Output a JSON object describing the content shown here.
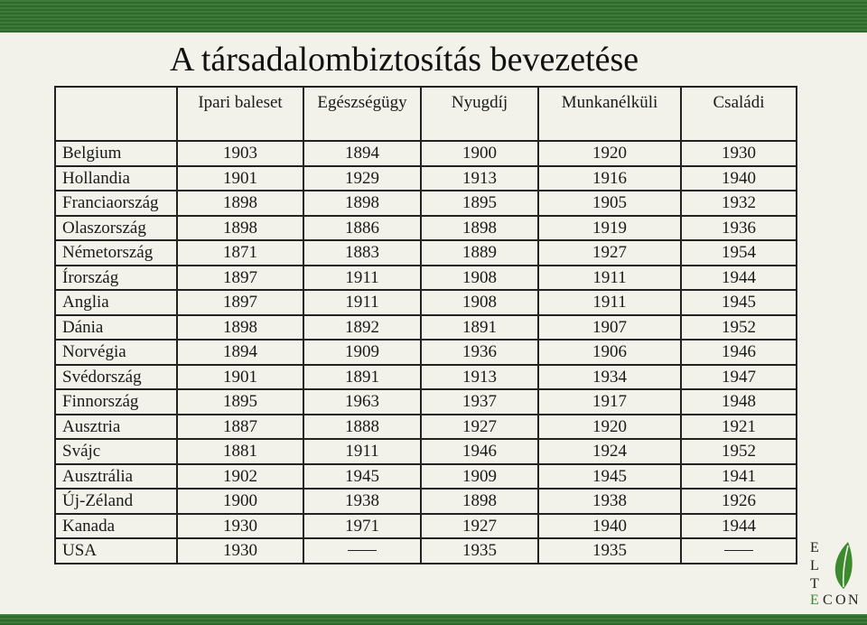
{
  "title": "A társadalombiztosítás bevezetése",
  "table": {
    "headers": [
      "",
      "Ipari baleset",
      "Egészségügy",
      "Nyugdíj",
      "Munkanélküli",
      "Családi"
    ],
    "rows": [
      {
        "country": "Belgium",
        "values": [
          "1903",
          "1894",
          "1900",
          "1920",
          "1930"
        ]
      },
      {
        "country": "Hollandia",
        "values": [
          "1901",
          "1929",
          "1913",
          "1916",
          "1940"
        ]
      },
      {
        "country": "Franciaország",
        "values": [
          "1898",
          "1898",
          "1895",
          "1905",
          "1932"
        ]
      },
      {
        "country": "Olaszország",
        "values": [
          "1898",
          "1886",
          "1898",
          "1919",
          "1936"
        ]
      },
      {
        "country": "Németország",
        "values": [
          "1871",
          "1883",
          "1889",
          "1927",
          "1954"
        ]
      },
      {
        "country": "Írország",
        "values": [
          "1897",
          "1911",
          "1908",
          "1911",
          "1944"
        ]
      },
      {
        "country": "Anglia",
        "values": [
          "1897",
          "1911",
          "1908",
          "1911",
          "1945"
        ]
      },
      {
        "country": "Dánia",
        "values": [
          "1898",
          "1892",
          "1891",
          "1907",
          "1952"
        ]
      },
      {
        "country": "Norvégia",
        "values": [
          "1894",
          "1909",
          "1936",
          "1906",
          "1946"
        ]
      },
      {
        "country": "Svédország",
        "values": [
          "1901",
          "1891",
          "1913",
          "1934",
          "1947"
        ]
      },
      {
        "country": "Finnország",
        "values": [
          "1895",
          "1963",
          "1937",
          "1917",
          "1948"
        ]
      },
      {
        "country": "Ausztria",
        "values": [
          "1887",
          "1888",
          "1927",
          "1920",
          "1921"
        ]
      },
      {
        "country": "Svájc",
        "values": [
          "1881",
          "1911",
          "1946",
          "1924",
          "1952"
        ]
      },
      {
        "country": "Ausztrália",
        "values": [
          "1902",
          "1945",
          "1909",
          "1945",
          "1941"
        ]
      },
      {
        "country": "Új-Zéland",
        "values": [
          "1900",
          "1938",
          "1898",
          "1938",
          "1926"
        ]
      },
      {
        "country": "Kanada",
        "values": [
          "1930",
          "1971",
          "1927",
          "1940",
          "1944"
        ]
      },
      {
        "country": "USA",
        "values": [
          "1930",
          "–",
          "1935",
          "1935",
          "–"
        ]
      }
    ]
  },
  "logo": {
    "letters": [
      "E",
      "L",
      "T",
      "E",
      "C",
      "O",
      "N"
    ],
    "accent_color": "#3c8a2e"
  }
}
